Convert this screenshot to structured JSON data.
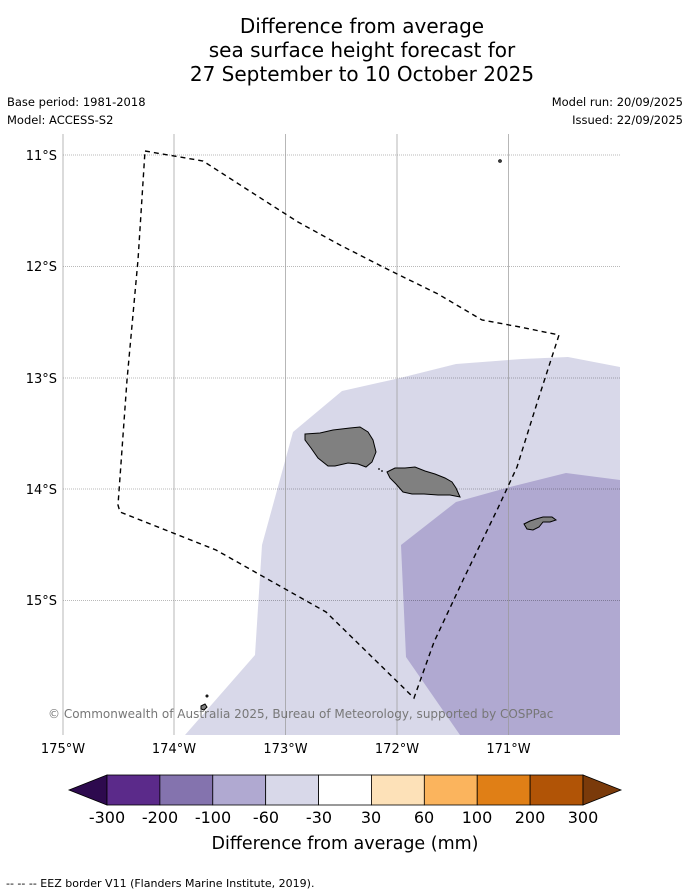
{
  "title_lines": [
    "Difference from average",
    "sea surface height forecast for",
    "27 September to 10 October 2025"
  ],
  "meta": {
    "base_period": "Base period: 1981-2018",
    "model": "Model: ACCESS-S2",
    "model_run": "Model run: 20/09/2025",
    "issued": "Issued: 22/09/2025"
  },
  "map": {
    "lat_labels": [
      "11°S",
      "12°S",
      "13°S",
      "14°S",
      "15°S"
    ],
    "lon_labels": [
      "175°W",
      "174°W",
      "173°W",
      "172°W",
      "171°W"
    ],
    "attribution": "© Commonwealth of Australia 2025, Bureau of Meteorology, supported by COSPPac",
    "land_color": "#808080",
    "eez_style": "dashed black line"
  },
  "colorbar": {
    "tick_labels": [
      "-300",
      "-200",
      "-100",
      "-60",
      "-30",
      "30",
      "60",
      "100",
      "200",
      "300"
    ],
    "colors": [
      "#2d0a4e",
      "#5b2a8a",
      "#8473ae",
      "#b0a9d1",
      "#d8d8e9",
      "#ffffff",
      "#fde1b8",
      "#fbb45d",
      "#e07f16",
      "#b15406",
      "#7a3a0a"
    ],
    "label": "Difference from average (mm)"
  },
  "footnote": "-- -- -- EEZ border V11 (Flanders Marine Institute, 2019)."
}
